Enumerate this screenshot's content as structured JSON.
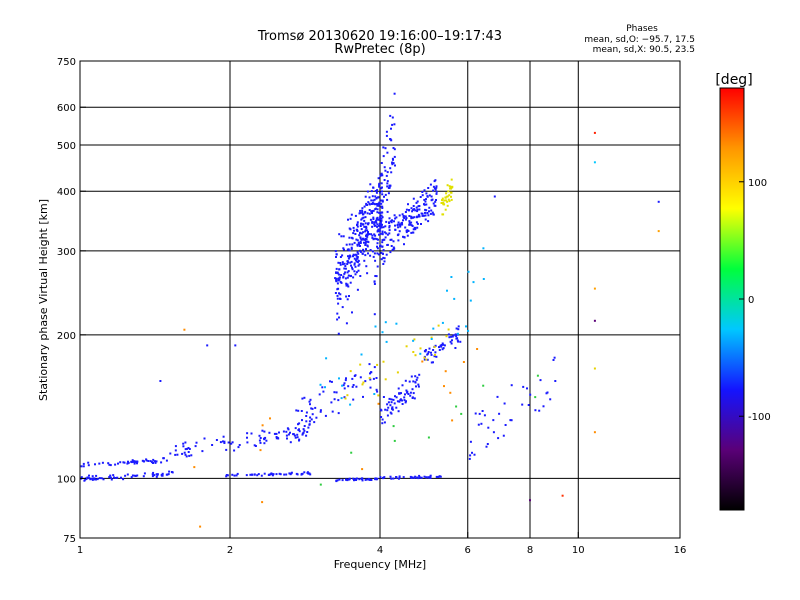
{
  "chart_data": {
    "type": "scatter",
    "title": "Tromsø 20130620 19:16:00–19:17:43",
    "subtitle": "RwPretec (8p)",
    "xlabel": "Frequency [MHz]",
    "ylabel": "Stationary phase Virtual Height [km]",
    "xscale": "log",
    "yscale": "log",
    "xlim": [
      1,
      16
    ],
    "ylim": [
      75,
      750
    ],
    "x_ticks": [
      1,
      2,
      4,
      6,
      8,
      10,
      16
    ],
    "x_tick_labels": [
      "1",
      "2",
      "4",
      "6",
      "8",
      "10",
      "16"
    ],
    "y_ticks": [
      75,
      100,
      200,
      300,
      400,
      500,
      600,
      750
    ],
    "y_tick_labels": [
      "75",
      "100",
      "200",
      "300",
      "400",
      "500",
      "600",
      "750"
    ],
    "grid": true,
    "phase_info": {
      "title": "Phases",
      "line_o": "mean, sd,O: −95.7, 17.5",
      "line_x": "mean, sd,X:  90.5, 23.5"
    },
    "colorbar": {
      "label": "[deg]",
      "range": [
        -180,
        180
      ],
      "ticks": [
        100,
        0,
        -100
      ],
      "tick_labels": [
        "100",
        "0",
        "-100"
      ],
      "stops": [
        "#000000",
        "#5a0078",
        "#1414ff",
        "#00c8ff",
        "#00ff3c",
        "#ffff00",
        "#ff9600",
        "#ff0000"
      ]
    },
    "traces": [
      {
        "name": "",
        "kind": "segment",
        "color": "#1a1aff",
        "n": 60,
        "x_range": [
          1.0,
          1.55
        ],
        "y_range": [
          99,
          103
        ],
        "jitter": 0.012
      },
      {
        "name": "",
        "kind": "segment",
        "color": "#1a1aff",
        "n": 50,
        "x_range": [
          1.0,
          1.5
        ],
        "y_range": [
          106,
          110
        ],
        "jitter": 0.01
      },
      {
        "name": "",
        "kind": "segment",
        "color": "#1a1aff",
        "n": 90,
        "x_range": [
          1.5,
          2.9
        ],
        "y_range": [
          110,
          130
        ],
        "jitter": 0.03
      },
      {
        "name": "",
        "kind": "segment",
        "color": "#1a1aff",
        "n": 45,
        "x_range": [
          1.95,
          2.9
        ],
        "y_range": [
          101,
          103
        ],
        "jitter": 0.008
      },
      {
        "name": "",
        "kind": "segment",
        "color": "#1a1aff",
        "n": 40,
        "x_range": [
          3.25,
          3.95
        ],
        "y_range": [
          99,
          100
        ],
        "jitter": 0.008
      },
      {
        "name": "",
        "kind": "segment",
        "color": "#1a1aff",
        "n": 40,
        "x_range": [
          4.0,
          5.3
        ],
        "y_range": [
          100,
          101
        ],
        "jitter": 0.01
      },
      {
        "name": "",
        "kind": "segment",
        "color": "#1a1aff",
        "n": 70,
        "x_range": [
          2.7,
          3.95
        ],
        "y_range": [
          125,
          175
        ],
        "jitter": 0.06
      },
      {
        "name": "",
        "kind": "segment",
        "color": "#1a1aff",
        "n": 45,
        "x_range": [
          3.25,
          3.9
        ],
        "y_range": [
          180,
          390
        ],
        "jitter": 0.11
      },
      {
        "name": "",
        "kind": "segment",
        "color": "#1a1aff",
        "n": 300,
        "x_range": [
          3.25,
          4.05
        ],
        "y_range": [
          220,
          420
        ],
        "jitter": 0.18
      },
      {
        "name": "",
        "kind": "segment",
        "color": "#1a1aff",
        "n": 80,
        "x_range": [
          3.9,
          4.3
        ],
        "y_range": [
          210,
          640
        ],
        "jitter": 0.06
      },
      {
        "name": "",
        "kind": "segment",
        "color": "#1a1aff",
        "n": 200,
        "x_range": [
          3.9,
          5.2
        ],
        "y_range": [
          270,
          420
        ],
        "jitter": 0.04
      },
      {
        "name": "",
        "kind": "segment",
        "color": "#1a1aff",
        "n": 70,
        "x_range": [
          4.0,
          4.8
        ],
        "y_range": [
          130,
          165
        ],
        "jitter": 0.05
      },
      {
        "name": "",
        "kind": "segment",
        "color": "#1a1aff",
        "n": 50,
        "x_range": [
          4.9,
          5.8
        ],
        "y_range": [
          175,
          205
        ],
        "jitter": 0.05
      },
      {
        "name": "",
        "kind": "segment",
        "color": "#1a1aff",
        "n": 40,
        "x_range": [
          6.0,
          9.0
        ],
        "y_range": [
          105,
          175
        ],
        "jitter": 0.12
      },
      {
        "name": "",
        "kind": "segment",
        "color": "#e0e000",
        "n": 35,
        "x_range": [
          5.3,
          5.6
        ],
        "y_range": [
          340,
          430
        ],
        "jitter": 0.04
      },
      {
        "name": "",
        "kind": "segment",
        "color": "#e6d200",
        "n": 25,
        "x_range": [
          3.4,
          5.9
        ],
        "y_range": [
          140,
          220
        ],
        "jitter": 0.12
      },
      {
        "name": "",
        "kind": "segment",
        "color": "#00b4ff",
        "n": 30,
        "x_range": [
          3.0,
          6.5
        ],
        "y_range": [
          120,
          300
        ],
        "jitter": 0.2
      },
      {
        "name": "",
        "kind": "segment",
        "color": "#ff8c00",
        "n": 15,
        "x_range": [
          1.6,
          6.4
        ],
        "y_range": [
          80,
          190
        ],
        "jitter": 0.25
      },
      {
        "name": "",
        "kind": "segment",
        "color": "#2ecc40",
        "n": 10,
        "x_range": [
          2.8,
          8.5
        ],
        "y_range": [
          90,
          180
        ],
        "jitter": 0.2
      }
    ],
    "isolated_points": [
      {
        "x": 10.8,
        "y": 530,
        "color": "#ff2000"
      },
      {
        "x": 10.8,
        "y": 460,
        "color": "#00c8ff"
      },
      {
        "x": 10.8,
        "y": 250,
        "color": "#ffa000"
      },
      {
        "x": 10.8,
        "y": 214,
        "color": "#5a0078"
      },
      {
        "x": 10.8,
        "y": 170,
        "color": "#e6d200"
      },
      {
        "x": 10.8,
        "y": 125,
        "color": "#ff8c00"
      },
      {
        "x": 14.5,
        "y": 380,
        "color": "#1a1aff"
      },
      {
        "x": 14.5,
        "y": 330,
        "color": "#ffa000"
      },
      {
        "x": 6.8,
        "y": 390,
        "color": "#1a1aff"
      },
      {
        "x": 8.0,
        "y": 90,
        "color": "#5a0078"
      },
      {
        "x": 1.45,
        "y": 160,
        "color": "#1a1aff"
      },
      {
        "x": 1.62,
        "y": 205,
        "color": "#ff8c00"
      },
      {
        "x": 1.8,
        "y": 190,
        "color": "#1a1aff"
      },
      {
        "x": 2.05,
        "y": 190,
        "color": "#1a1aff"
      },
      {
        "x": 9.3,
        "y": 92,
        "color": "#ff3000"
      }
    ]
  }
}
